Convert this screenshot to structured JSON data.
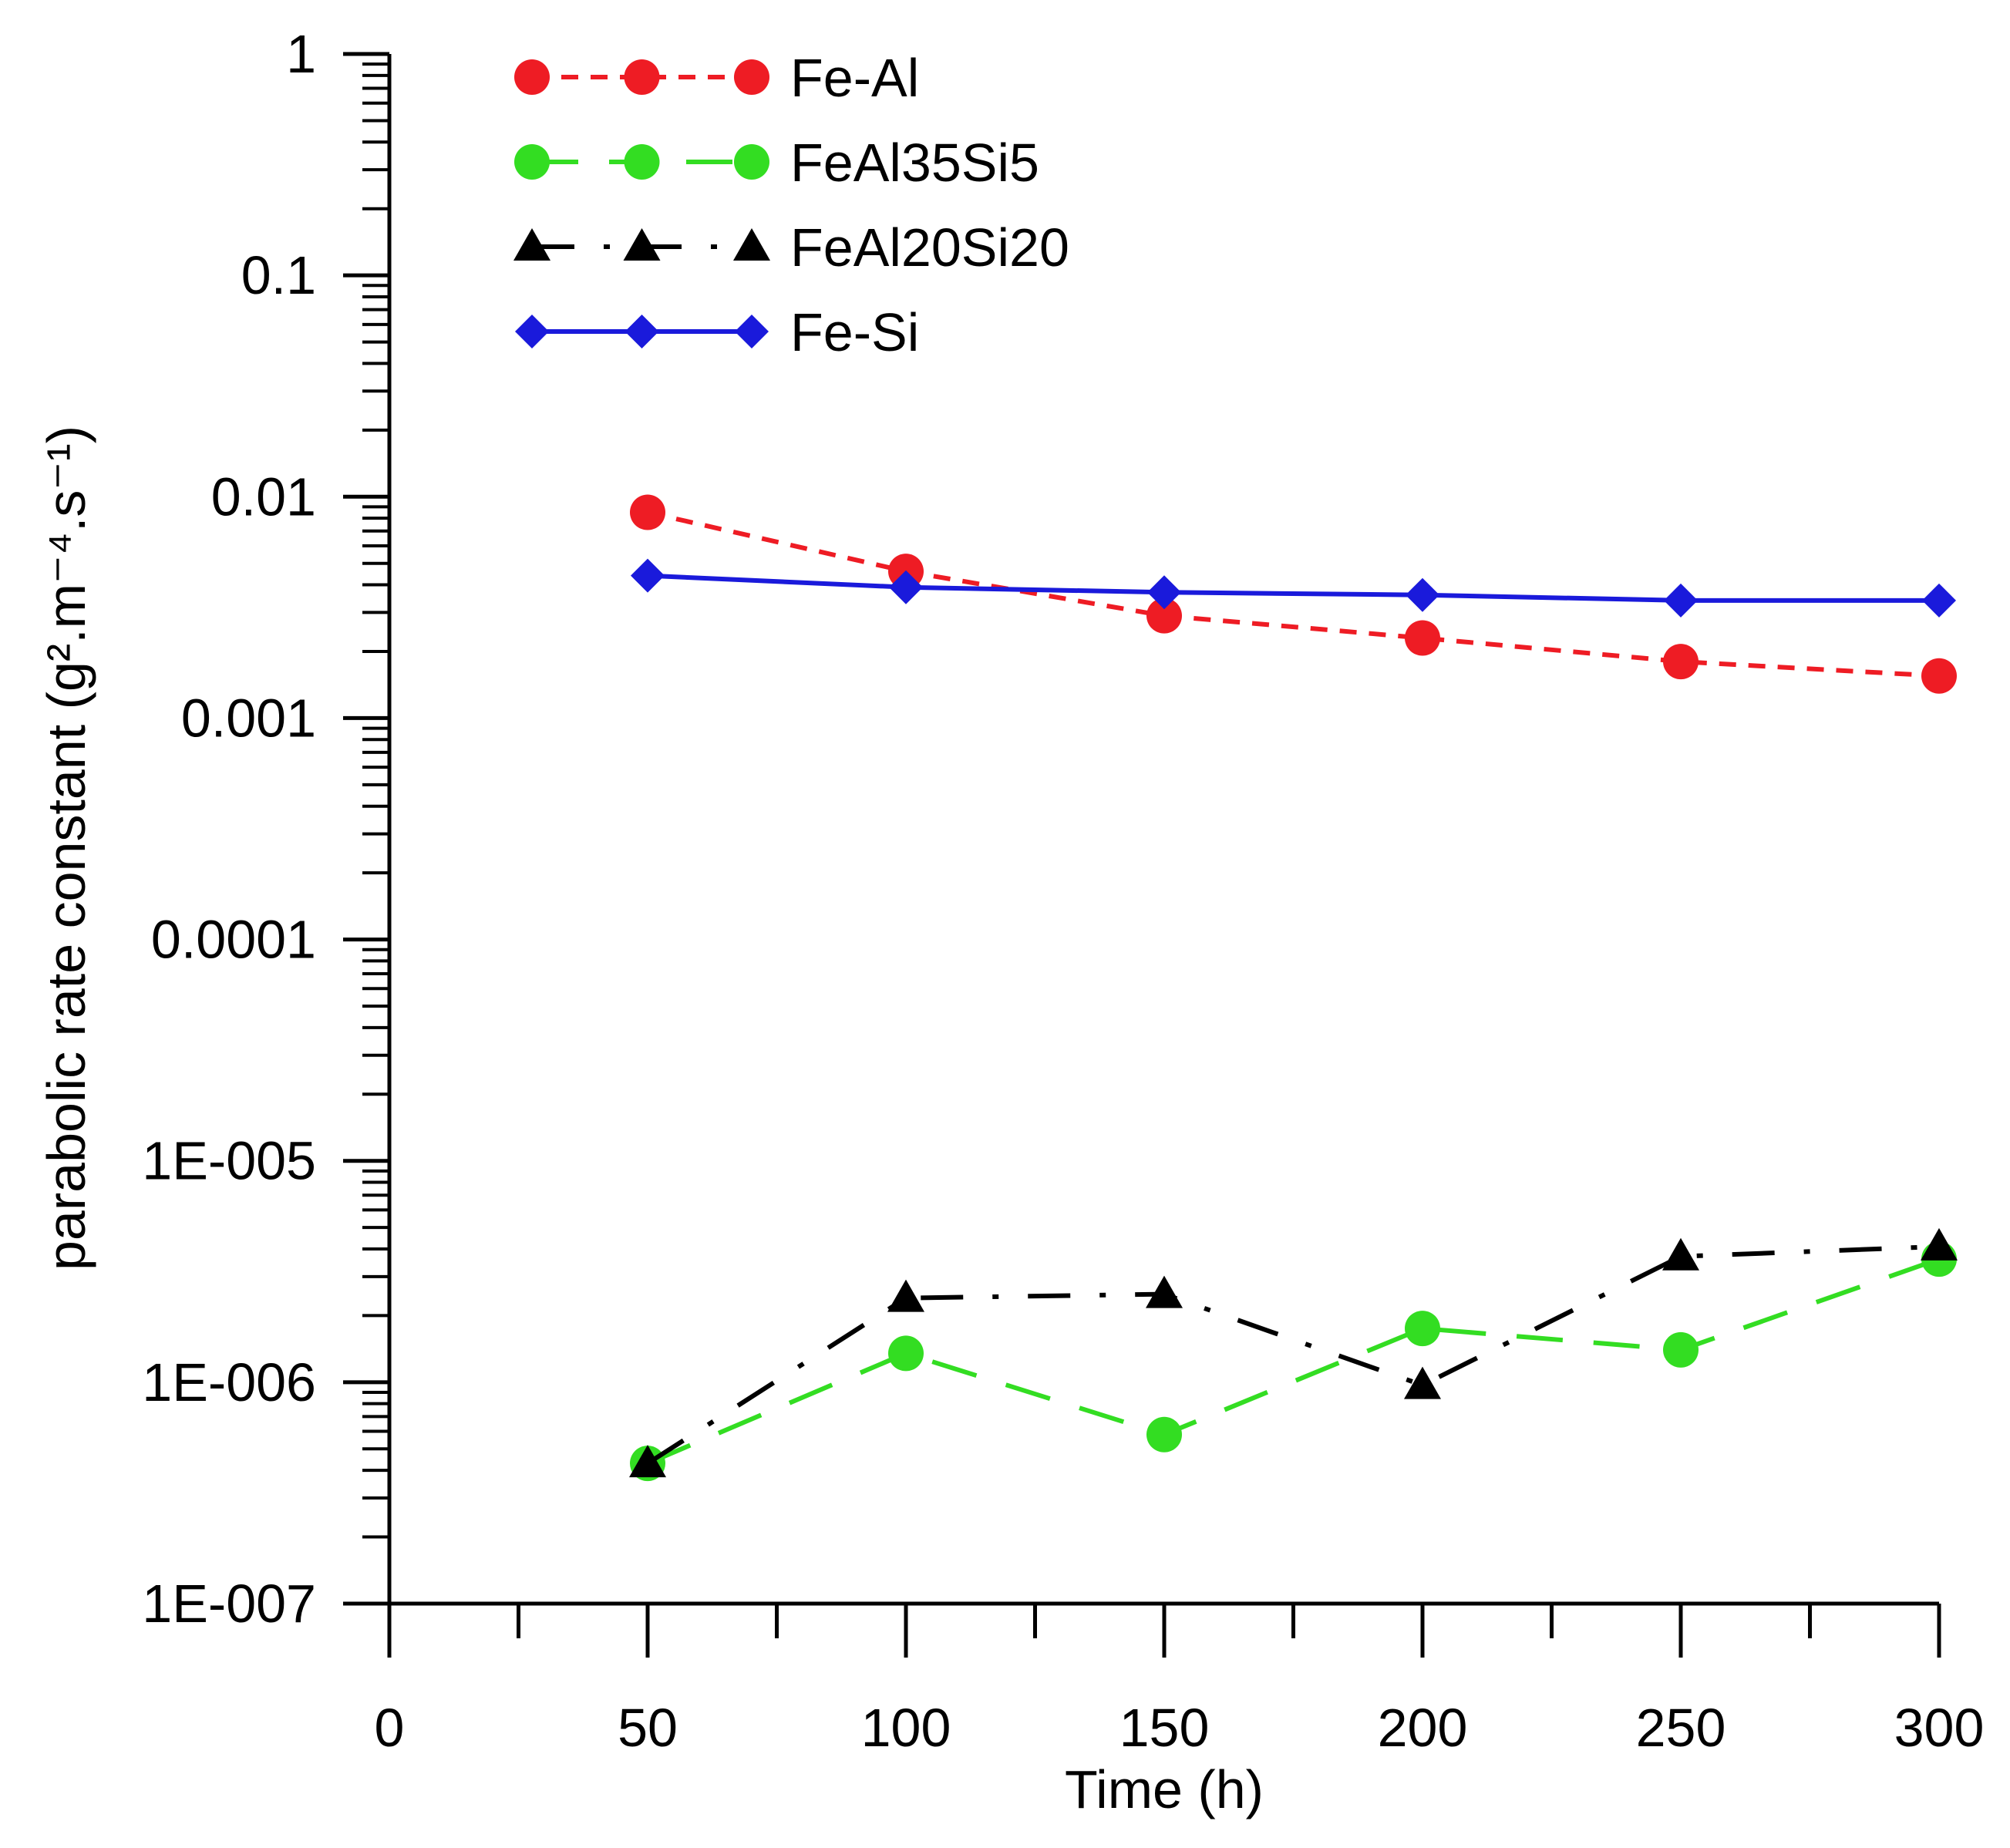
{
  "chart_data": {
    "type": "line",
    "title": "",
    "xlabel": "Time (h)",
    "ylabel": "parabolic rate constant (g².m⁻⁴.s⁻¹)",
    "y_scale": "log",
    "xlim": [
      0,
      300
    ],
    "ylim": [
      1e-07,
      1
    ],
    "x_ticks": [
      0,
      50,
      100,
      150,
      200,
      250,
      300
    ],
    "x_tick_labels": [
      "0",
      "50",
      "100",
      "150",
      "200",
      "250",
      "300"
    ],
    "y_ticks": [
      1e-07,
      1e-06,
      1e-05,
      0.0001,
      0.001,
      0.01,
      0.1,
      1
    ],
    "y_tick_labels": [
      "1E-007",
      "1E-006",
      "1E-005",
      "0.0001",
      "0.001",
      "0.01",
      "0.1",
      "1"
    ],
    "legend_position": "top-left",
    "x": [
      50,
      100,
      150,
      200,
      250,
      300
    ],
    "series": [
      {
        "name": "Fe-Al",
        "color": "#ee1c24",
        "marker": "circle",
        "line": "short-dash",
        "values": [
          0.0085,
          0.0046,
          0.0029,
          0.0023,
          0.0018,
          0.00155
        ]
      },
      {
        "name": "FeAl35Si5",
        "color": "#33dd22",
        "marker": "circle",
        "line": "long-dash",
        "values": [
          4.3e-07,
          1.35e-06,
          5.8e-07,
          1.75e-06,
          1.4e-06,
          3.6e-06
        ]
      },
      {
        "name": "FeAl20Si20",
        "color": "#000000",
        "marker": "triangle",
        "line": "dash-dot",
        "values": [
          4.3e-07,
          2.4e-06,
          2.5e-06,
          9.7e-07,
          3.7e-06,
          4.1e-06
        ]
      },
      {
        "name": "Fe-Si",
        "color": "#1a1adb",
        "marker": "diamond",
        "line": "solid",
        "values": [
          0.0044,
          0.0039,
          0.0037,
          0.0036,
          0.0034,
          0.0034
        ]
      }
    ]
  }
}
